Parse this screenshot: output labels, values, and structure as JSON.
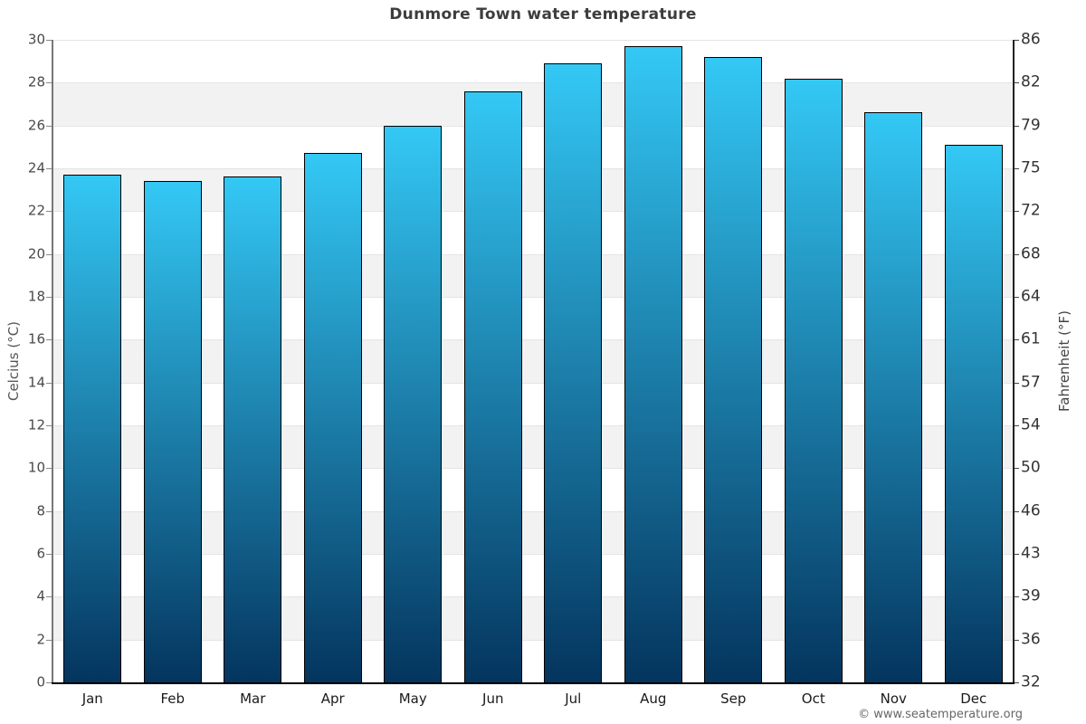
{
  "title": "Dunmore Town water temperature",
  "footer": "© www.seatemperature.org",
  "axes": {
    "left_title": "Celcius (°C)",
    "right_title": "Fahrenheit (°F)"
  },
  "chart_data": {
    "type": "bar",
    "title": "Dunmore Town water temperature",
    "categories": [
      "Jan",
      "Feb",
      "Mar",
      "Apr",
      "May",
      "Jun",
      "Jul",
      "Aug",
      "Sep",
      "Oct",
      "Nov",
      "Dec"
    ],
    "values": [
      23.7,
      23.4,
      23.6,
      24.7,
      26.0,
      27.6,
      28.9,
      29.7,
      29.2,
      28.2,
      26.6,
      25.1
    ],
    "xlabel": "",
    "ylabel": "Celcius (°C)",
    "ylabel_right": "Fahrenheit (°F)",
    "ylim": [
      0,
      30
    ],
    "y_ticks_celsius": [
      0,
      2,
      4,
      6,
      8,
      10,
      12,
      14,
      16,
      18,
      20,
      22,
      24,
      26,
      28,
      30
    ],
    "y_tick_labels_fahrenheit": [
      "32",
      "36",
      "39",
      "43",
      "46",
      "50",
      "54",
      "57",
      "61",
      "64",
      "68",
      "72",
      "75",
      "79",
      "82",
      "86"
    ],
    "grid": "horizontal gridlines with alternating shaded bands",
    "legend": "none",
    "colors": {
      "bar_gradient_top": "#34c8f5",
      "bar_gradient_bottom": "#04355e",
      "bar_border": "#000000",
      "band_shade": "#f2f2f2",
      "gridline": "#e4e4e4",
      "title_text": "#3d3d3d",
      "background": "#ffffff"
    }
  }
}
